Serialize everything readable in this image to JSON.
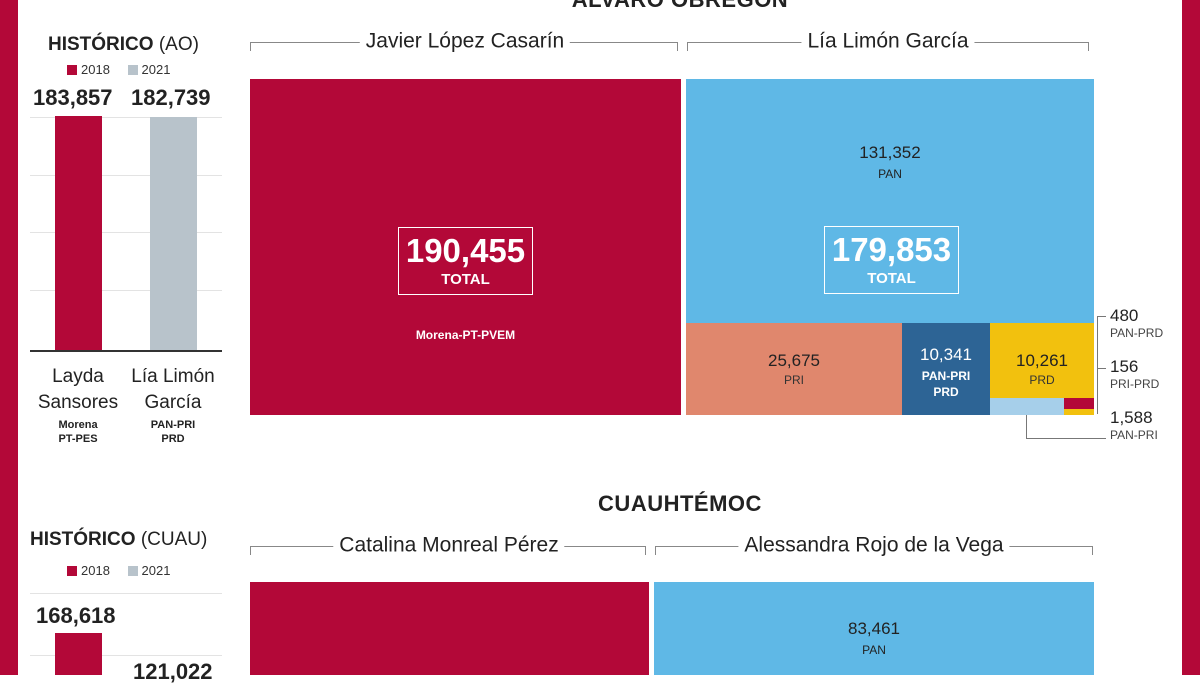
{
  "colors": {
    "morena": "#b30838",
    "morena_2018": "#b30838",
    "pan": "#5fb8e6",
    "pri": "#e0876d",
    "pan_pri_prd": "#2d6495",
    "prd": "#f2c10e",
    "pan_pri": "#a6cfea",
    "y2021": "#b8c3cb"
  },
  "alvaro": {
    "title": "ÁLVARO OBREGÓN",
    "hist_title_bold": "HISTÓRICO",
    "hist_title_rest": "(AO)",
    "legend_2018": "2018",
    "legend_2021": "2021",
    "bar_left_value": "183,857",
    "bar_right_value": "182,739",
    "bar_left_name_1": "Layda",
    "bar_left_name_2": "Sansores",
    "bar_left_party_1": "Morena",
    "bar_left_party_2": "PT-PES",
    "bar_right_name_1": "Lía Limón",
    "bar_right_name_2": "García",
    "bar_right_party_1": "PAN-PRI",
    "bar_right_party_2": "PRD",
    "cand_left": "Javier López Casarín",
    "cand_right": "Lía Limón García",
    "left_total": "190,455",
    "left_total_label": "TOTAL",
    "left_party": "Morena-PT-PVEM",
    "right_total": "179,853",
    "right_total_label": "TOTAL",
    "pan_value": "131,352",
    "pan_label": "PAN",
    "pri_value": "25,675",
    "pri_label": "PRI",
    "pan_pri_prd_value": "10,341",
    "pan_pri_prd_label_1": "PAN-PRI",
    "pan_pri_prd_label_2": "PRD",
    "prd_value": "10,261",
    "prd_label": "PRD",
    "c1_value": "480",
    "c1_label": "PAN-PRD",
    "c2_value": "156",
    "c2_label": "PRI-PRD",
    "c3_value": "1,588",
    "c3_label": "PAN-PRI"
  },
  "cuauh": {
    "title": "CUAUHTÉMOC",
    "hist_title_bold": "HISTÓRICO",
    "hist_title_rest": "(CUAU)",
    "legend_2018": "2018",
    "legend_2021": "2021",
    "bar_left_value": "168,618",
    "bar_right_value": "121,022",
    "cand_left": "Catalina Monreal Pérez",
    "cand_right": "Alessandra Rojo de la Vega",
    "pan_value": "83,461",
    "pan_label": "PAN"
  },
  "chart_data": [
    {
      "type": "bar",
      "title": "HISTÓRICO (AO)",
      "categories": [
        "Layda Sansores",
        "Lía Limón García"
      ],
      "series": [
        {
          "name": "2018",
          "values": [
            183857,
            null
          ]
        },
        {
          "name": "2021",
          "values": [
            null,
            182739
          ]
        }
      ]
    },
    {
      "type": "treemap",
      "title": "ÁLVARO OBREGÓN",
      "groups": [
        {
          "name": "Javier López Casarín",
          "total": 190455,
          "parts": [
            {
              "label": "Morena-PT-PVEM",
              "value": 190455
            }
          ]
        },
        {
          "name": "Lía Limón García",
          "total": 179853,
          "parts": [
            {
              "label": "PAN",
              "value": 131352
            },
            {
              "label": "PRI",
              "value": 25675
            },
            {
              "label": "PAN-PRI PRD",
              "value": 10341
            },
            {
              "label": "PRD",
              "value": 10261
            },
            {
              "label": "PAN-PRD",
              "value": 480
            },
            {
              "label": "PRI-PRD",
              "value": 156
            },
            {
              "label": "PAN-PRI",
              "value": 1588
            }
          ]
        }
      ]
    },
    {
      "type": "bar",
      "title": "HISTÓRICO (CUAU)",
      "categories": [
        "2018",
        "2021"
      ],
      "series": [
        {
          "name": "2018",
          "values": [
            168618,
            null
          ]
        },
        {
          "name": "2021",
          "values": [
            null,
            121022
          ]
        }
      ]
    },
    {
      "type": "treemap",
      "title": "CUAUHTÉMOC",
      "groups": [
        {
          "name": "Catalina Monreal Pérez",
          "parts": []
        },
        {
          "name": "Alessandra Rojo de la Vega",
          "parts": [
            {
              "label": "PAN",
              "value": 83461
            }
          ]
        }
      ]
    }
  ]
}
